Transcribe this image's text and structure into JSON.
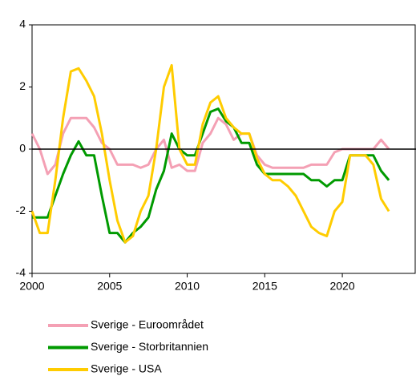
{
  "chart_data": {
    "type": "line",
    "x": [
      2000,
      2000.5,
      2001,
      2001.5,
      2002,
      2002.5,
      2003,
      2003.5,
      2004,
      2004.5,
      2005,
      2005.5,
      2006,
      2006.5,
      2007,
      2007.5,
      2008,
      2008.5,
      2009,
      2009.5,
      2010,
      2010.5,
      2011,
      2011.5,
      2012,
      2012.5,
      2013,
      2013.5,
      2014,
      2014.5,
      2015,
      2015.5,
      2016,
      2016.5,
      2017,
      2017.5,
      2018,
      2018.5,
      2019,
      2019.5,
      2020,
      2020.5,
      2021,
      2021.5,
      2022,
      2022.5,
      2023
    ],
    "series": [
      {
        "name": "Sverige - Euroområdet",
        "color": "#f4a0b4",
        "values": [
          0.5,
          0,
          -0.8,
          -0.5,
          0.5,
          1.0,
          1.0,
          1.0,
          0.7,
          0.2,
          0,
          -0.5,
          -0.5,
          -0.5,
          -0.6,
          -0.5,
          0,
          0.3,
          -0.6,
          -0.5,
          -0.7,
          -0.7,
          0.2,
          0.5,
          1.0,
          0.8,
          0.3,
          0.5,
          0.5,
          -0.2,
          -0.5,
          -0.6,
          -0.6,
          -0.6,
          -0.6,
          -0.6,
          -0.5,
          -0.5,
          -0.5,
          -0.1,
          0,
          0,
          0,
          0,
          0,
          0.3,
          0
        ]
      },
      {
        "name": "Sverige - Storbritannien",
        "color": "#009a00",
        "values": [
          -2.2,
          -2.2,
          -2.2,
          -1.5,
          -0.8,
          -0.2,
          0.25,
          -0.2,
          -0.2,
          -1.5,
          -2.7,
          -2.7,
          -3.0,
          -2.7,
          -2.5,
          -2.2,
          -1.3,
          -0.7,
          0.5,
          0,
          -0.2,
          -0.2,
          0.5,
          1.2,
          1.3,
          0.9,
          0.7,
          0.2,
          0.2,
          -0.5,
          -0.8,
          -0.8,
          -0.8,
          -0.8,
          -0.8,
          -0.8,
          -1.0,
          -1.0,
          -1.2,
          -1.0,
          -1.0,
          -0.2,
          -0.2,
          -0.2,
          -0.2,
          -0.7,
          -1.0
        ]
      },
      {
        "name": "Sverige - USA",
        "color": "#ffcc00",
        "values": [
          -2.0,
          -2.7,
          -2.7,
          -1.0,
          1.0,
          2.5,
          2.6,
          2.2,
          1.7,
          0.5,
          -1.0,
          -2.3,
          -3.0,
          -2.8,
          -2.0,
          -1.5,
          0,
          2.0,
          2.7,
          0,
          -0.5,
          -0.5,
          0.8,
          1.5,
          1.7,
          1.0,
          0.7,
          0.5,
          0.5,
          -0.3,
          -0.8,
          -1.0,
          -1.0,
          -1.2,
          -1.5,
          -2.0,
          -2.5,
          -2.7,
          -2.8,
          -2.0,
          -1.7,
          -0.2,
          -0.2,
          -0.2,
          -0.5,
          -1.6,
          -2.0
        ]
      }
    ],
    "xlim": [
      2000,
      2024.75
    ],
    "xticks": [
      2000,
      2005,
      2010,
      2015,
      2020
    ],
    "ylim": [
      -4,
      4
    ],
    "yticks": [
      -4,
      -2,
      0,
      2,
      4
    ]
  }
}
